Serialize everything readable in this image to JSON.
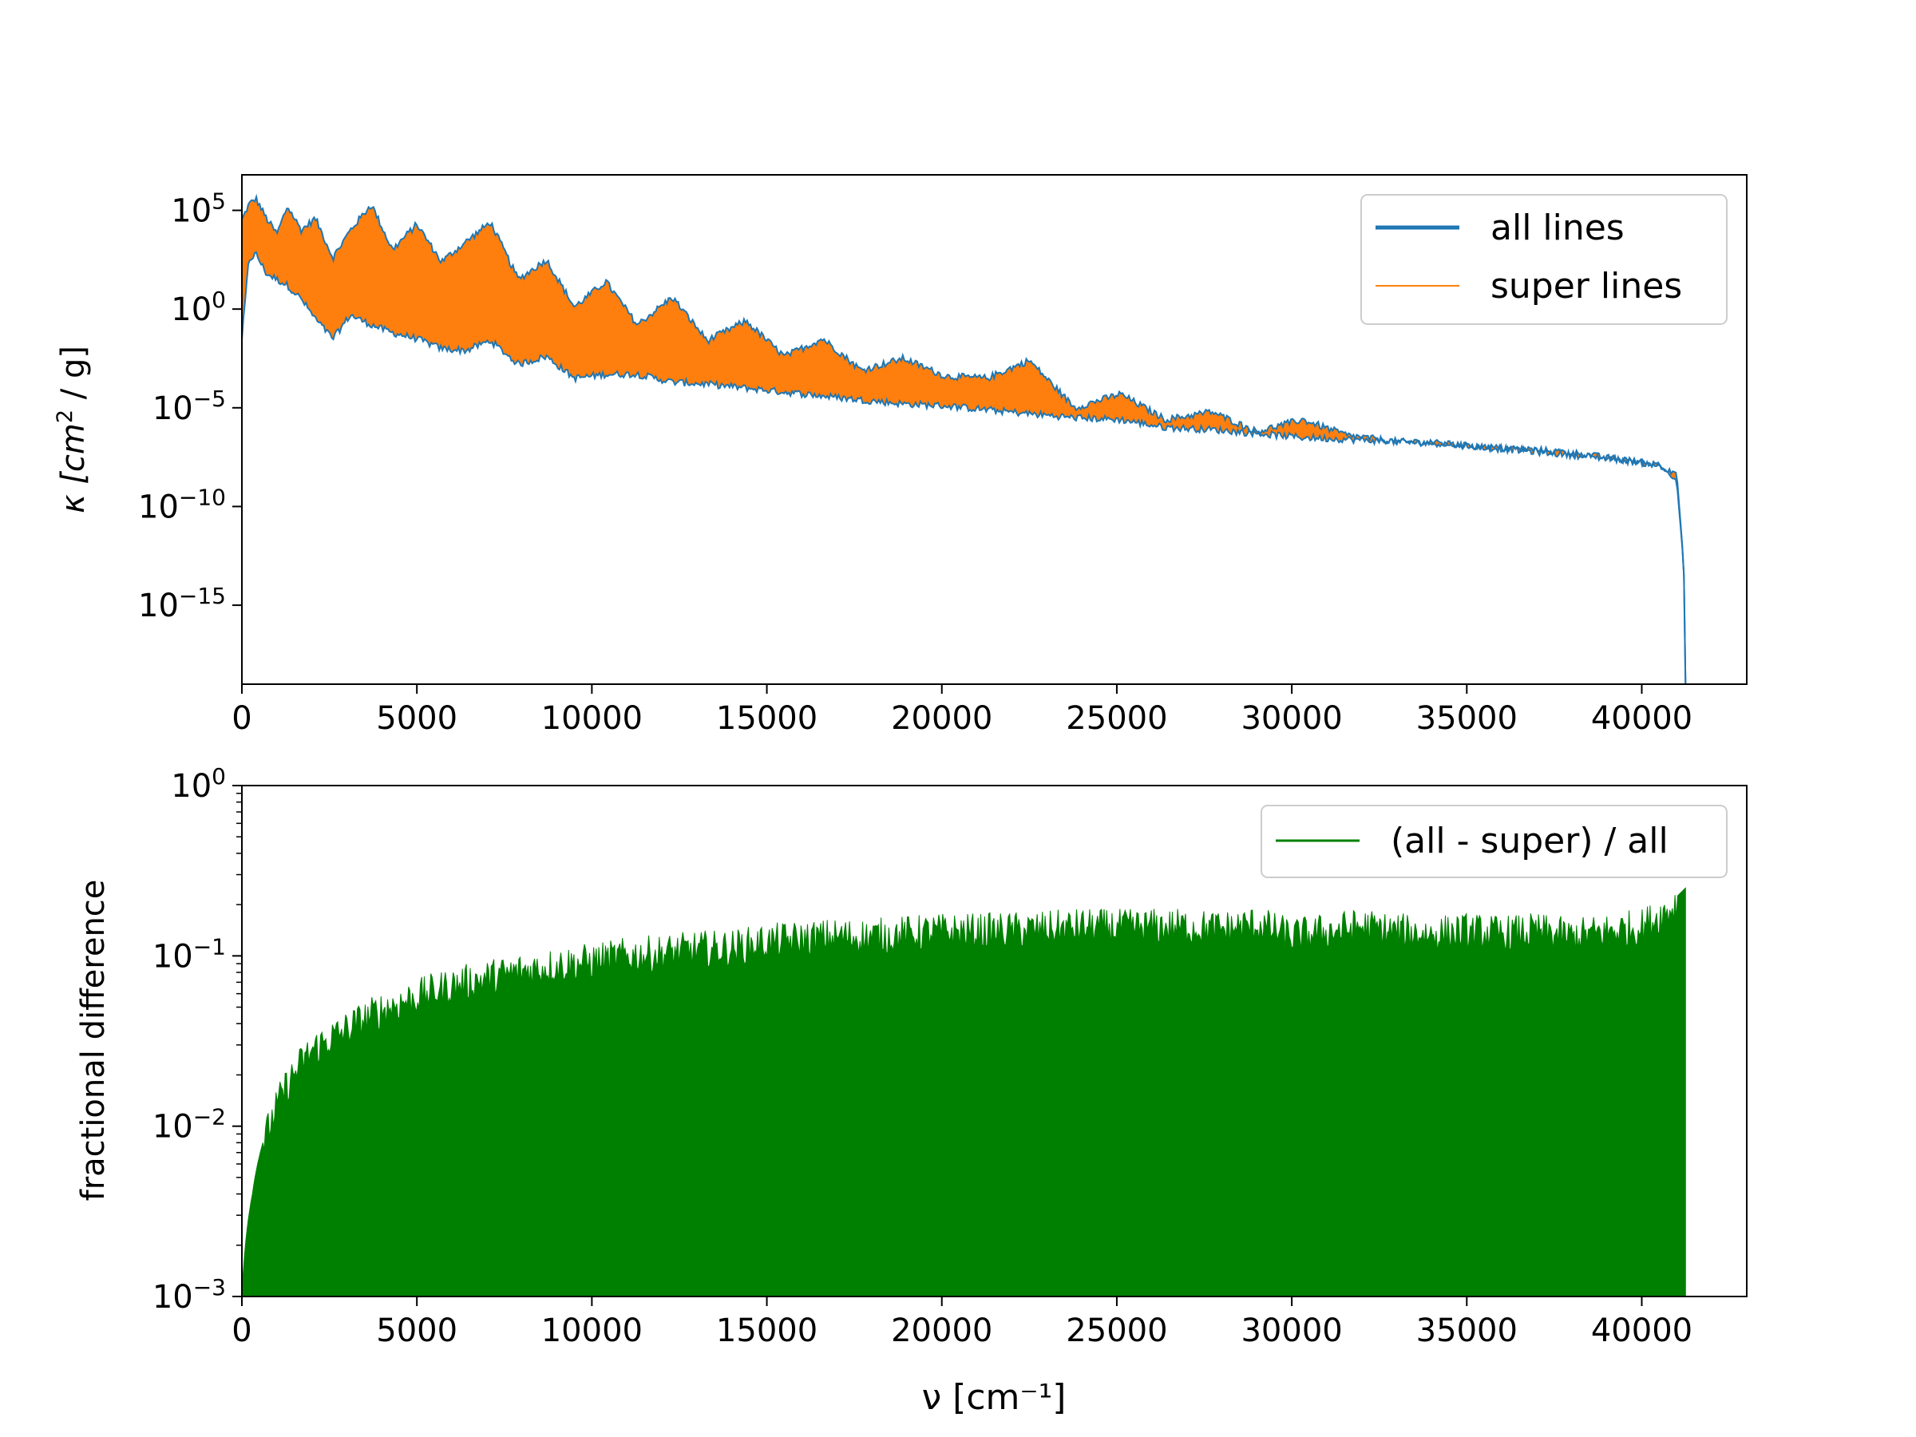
{
  "chart_data": [
    {
      "type": "line",
      "scale": "log",
      "xlabel": "ν [cm⁻¹]",
      "ylabel_base": "κ [cm",
      "ylabel_sup": "2",
      "ylabel_tail": " / g]",
      "xlim": [
        0,
        43000
      ],
      "ylim_log10": [
        -19,
        6.8
      ],
      "x_ticks": [
        0,
        5000,
        10000,
        15000,
        20000,
        25000,
        30000,
        35000,
        40000
      ],
      "x_tick_labels": [
        "0",
        "5000",
        "10000",
        "15000",
        "20000",
        "25000",
        "30000",
        "35000",
        "40000"
      ],
      "y_ticks_log10": [
        5,
        0,
        -5,
        -10,
        -15
      ],
      "y_tick_labels": [
        {
          "base": "10",
          "exp": "5"
        },
        {
          "base": "10",
          "exp": "0"
        },
        {
          "base": "10",
          "exp": "−5"
        },
        {
          "base": "10",
          "exp": "−10"
        },
        {
          "base": "10",
          "exp": "−15"
        }
      ],
      "legend": {
        "position": "upper-right"
      },
      "series": [
        {
          "name": "all lines",
          "color": "#1f77b4",
          "x": [
            0,
            200,
            400,
            700,
            1000,
            1300,
            1700,
            2100,
            2600,
            3100,
            3700,
            4300,
            5000,
            5700,
            6400,
            7100,
            7900,
            8700,
            9500,
            10400,
            11300,
            12300,
            13300,
            14400,
            15500,
            16600,
            17700,
            18900,
            20100,
            21300,
            22500,
            23800,
            25100,
            26400,
            27700,
            29000,
            30300,
            31600,
            32900,
            34200,
            35500,
            36800,
            38100,
            39300,
            40500,
            41000,
            41200,
            41250
          ],
          "upper_log10": [
            4.5,
            5.3,
            5.6,
            4.6,
            3.8,
            5.2,
            4.0,
            4.6,
            2.6,
            4.0,
            5.3,
            3.0,
            4.3,
            2.4,
            3.4,
            4.4,
            1.5,
            2.5,
            0.1,
            1.4,
            -0.8,
            0.6,
            -1.6,
            -0.6,
            -2.4,
            -1.5,
            -3.1,
            -2.5,
            -3.4,
            -3.5,
            -2.6,
            -5.0,
            -4.3,
            -5.6,
            -5.2,
            -6.2,
            -5.6,
            -6.4,
            -6.7,
            -6.8,
            -7.0,
            -7.1,
            -7.3,
            -7.6,
            -7.9,
            -8.3,
            -13.0,
            -19.0
          ],
          "lower_log10": [
            -1.5,
            2.5,
            2.8,
            1.8,
            1.5,
            1.2,
            0.5,
            -0.5,
            -1.5,
            -0.3,
            -0.8,
            -1.2,
            -1.5,
            -2.0,
            -2.1,
            -1.6,
            -2.8,
            -2.4,
            -3.5,
            -3.3,
            -3.3,
            -3.7,
            -3.8,
            -4.0,
            -4.2,
            -4.4,
            -4.6,
            -4.8,
            -4.9,
            -5.1,
            -5.3,
            -5.5,
            -5.6,
            -6.0,
            -6.1,
            -6.3,
            -6.5,
            -6.6,
            -6.7,
            -6.8,
            -7.0,
            -7.2,
            -7.4,
            -7.6,
            -7.9,
            -8.7,
            -13.0,
            -19.0
          ]
        },
        {
          "name": "super lines",
          "color": "#ff7f0e"
        }
      ]
    },
    {
      "type": "area",
      "scale": "log",
      "ylabel": "fractional difference",
      "xlim": [
        0,
        43000
      ],
      "ylim_log10": [
        -3,
        0
      ],
      "x_ticks": [
        0,
        5000,
        10000,
        15000,
        20000,
        25000,
        30000,
        35000,
        40000
      ],
      "x_tick_labels": [
        "0",
        "5000",
        "10000",
        "15000",
        "20000",
        "25000",
        "30000",
        "35000",
        "40000"
      ],
      "y_ticks_log10": [
        0,
        -1,
        -2,
        -3
      ],
      "y_tick_labels": [
        {
          "base": "10",
          "exp": "0"
        },
        {
          "base": "10",
          "exp": "−1"
        },
        {
          "base": "10",
          "exp": "−2"
        },
        {
          "base": "10",
          "exp": "−3"
        }
      ],
      "legend": {
        "position": "upper-right"
      },
      "series": [
        {
          "name": "(all - super) / all",
          "color": "#008000",
          "x": [
            0,
            300,
            600,
            1000,
            1500,
            2000,
            3000,
            4000,
            5000,
            6000,
            7000,
            8000,
            9000,
            10000,
            11000,
            12000,
            13000,
            14000,
            15000,
            16000,
            17000,
            18000,
            19000,
            20000,
            21000,
            22000,
            23000,
            24000,
            25000,
            26000,
            27000,
            28000,
            29000,
            30000,
            31000,
            32000,
            33000,
            34000,
            35000,
            36000,
            37000,
            38000,
            39000,
            40000,
            40800,
            41250
          ],
          "upper": [
            0.001,
            0.004,
            0.008,
            0.014,
            0.022,
            0.03,
            0.04,
            0.052,
            0.062,
            0.072,
            0.08,
            0.088,
            0.095,
            0.1,
            0.108,
            0.112,
            0.118,
            0.12,
            0.13,
            0.135,
            0.14,
            0.14,
            0.145,
            0.15,
            0.15,
            0.152,
            0.155,
            0.16,
            0.158,
            0.16,
            0.16,
            0.155,
            0.165,
            0.14,
            0.15,
            0.16,
            0.15,
            0.145,
            0.15,
            0.145,
            0.15,
            0.14,
            0.15,
            0.16,
            0.2,
            0.25
          ]
        }
      ]
    }
  ]
}
